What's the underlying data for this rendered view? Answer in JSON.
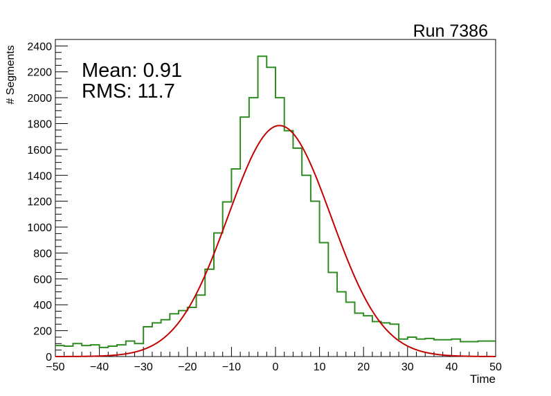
{
  "chart_data": {
    "type": "histogram",
    "title": "Run 7386",
    "xlabel": "Time",
    "ylabel": "# Segments",
    "xlim": [
      -50,
      50
    ],
    "ylim": [
      0,
      2450
    ],
    "x_ticks": [
      -50,
      -40,
      -30,
      -20,
      -10,
      0,
      10,
      20,
      30,
      40,
      50
    ],
    "y_ticks": [
      0,
      200,
      400,
      600,
      800,
      1000,
      1200,
      1400,
      1600,
      1800,
      2000,
      2200,
      2400
    ],
    "stats": {
      "mean_label": "Mean: 0.91",
      "rms_label": "RMS:  11.7"
    },
    "bin_width": 2,
    "bin_low_edges": [
      -50,
      -48,
      -46,
      -44,
      -42,
      -40,
      -38,
      -36,
      -34,
      -32,
      -30,
      -28,
      -26,
      -24,
      -22,
      -20,
      -18,
      -16,
      -14,
      -12,
      -10,
      -8,
      -6,
      -4,
      -2,
      0,
      2,
      4,
      6,
      8,
      10,
      12,
      14,
      16,
      18,
      20,
      22,
      24,
      26,
      28,
      30,
      32,
      34,
      36,
      38,
      40,
      42,
      44,
      46,
      48
    ],
    "series": [
      {
        "kind": "histogram",
        "color": "#2e8b22",
        "values": [
          85,
          80,
          100,
          85,
          90,
          70,
          80,
          90,
          120,
          100,
          230,
          260,
          285,
          330,
          355,
          380,
          475,
          675,
          955,
          1195,
          1450,
          1850,
          2000,
          2320,
          2235,
          2000,
          1745,
          1610,
          1400,
          1200,
          880,
          650,
          500,
          420,
          335,
          315,
          270,
          260,
          250,
          135,
          150,
          135,
          140,
          130,
          130,
          135,
          115,
          115,
          120,
          120
        ]
      },
      {
        "kind": "gaussian-fit",
        "color": "#c00000",
        "amplitude": 1785,
        "mean": 0.91,
        "sigma": 11.7
      }
    ]
  }
}
